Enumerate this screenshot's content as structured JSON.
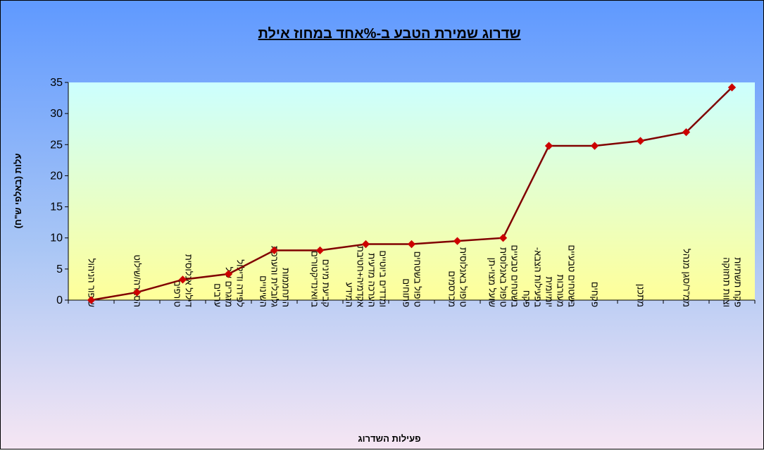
{
  "chart_data": {
    "type": "line",
    "title": "שדרוג שמירת הטבע ב-%אחד במחוז אילת",
    "y_label": "עלות (באלפי ש\"ח)",
    "x_label": "פעילות השדרוג",
    "categories": [
      "שיפור הניהול",
      "הסברה/שילוט",
      "דילול אנלוסית טורפים",
      "לפידה ודילול מזגרים של ערבים",
      "התחממות גלובלית והערכת השינויים",
      "קביעת מינים ביואינדיקטורים",
      "ומדדים ביוטיים הערכה מדעית אקדמיה+חטיבת המידע",
      "טיפול בשטחים פתוחים",
      "טיפול באנלוסית מכרסמים",
      "בשטחים טבעיים טיפול באנלוסית שועל מצוי-תן",
      "בשטחים טבעיים מעורבות יומיומית בפעילות הצבא- פקח",
      "פקחים",
      "מתכנן",
      "ממ\"ר/סגן מנהל",
      "פקח תשתיות וצוות תחזוקה"
    ],
    "series": [
      {
        "name": "עלות",
        "color": "#800000",
        "values": [
          0,
          1.25,
          3.3,
          4.2,
          8,
          8,
          9,
          9,
          9.5,
          10,
          24.8,
          24.8,
          25.6,
          27,
          34.2
        ]
      }
    ],
    "ylim": [
      0,
      35
    ],
    "yticks": [
      0,
      5,
      10,
      15,
      20,
      25,
      30,
      35
    ]
  }
}
